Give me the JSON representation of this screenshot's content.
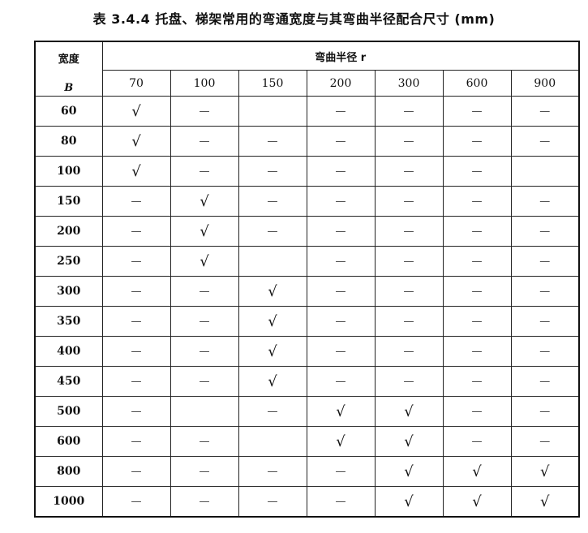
{
  "title": "表 3.4.4  托盘、梯架常用的弯通宽度与其弯曲半径配合尺寸 (mm)",
  "header": {
    "width_label": "宽度",
    "width_symbol": "B",
    "radius_label": "弯曲半径 r",
    "radii": [
      "70",
      "100",
      "150",
      "200",
      "300",
      "600",
      "900"
    ]
  },
  "rows": [
    {
      "B": "60",
      "cells": [
        "√",
        "—",
        "",
        "—",
        "—",
        "—",
        "—"
      ]
    },
    {
      "B": "80",
      "cells": [
        "√",
        "—",
        "—",
        "—",
        "—",
        "—",
        "—"
      ]
    },
    {
      "B": "100",
      "cells": [
        "√",
        "—",
        "—",
        "—",
        "—",
        "—",
        ""
      ]
    },
    {
      "B": "150",
      "cells": [
        "—",
        "√",
        "—",
        "—",
        "—",
        "—",
        "—"
      ]
    },
    {
      "B": "200",
      "cells": [
        "—",
        "√",
        "—",
        "—",
        "—",
        "—",
        "—"
      ]
    },
    {
      "B": "250",
      "cells": [
        "—",
        "√",
        "",
        "—",
        "—",
        "—",
        "—"
      ]
    },
    {
      "B": "300",
      "cells": [
        "—",
        "—",
        "√",
        "—",
        "—",
        "—",
        "—"
      ]
    },
    {
      "B": "350",
      "cells": [
        "—",
        "—",
        "√",
        "—",
        "—",
        "—",
        "—"
      ]
    },
    {
      "B": "400",
      "cells": [
        "—",
        "—",
        "√",
        "—",
        "—",
        "—",
        "—"
      ]
    },
    {
      "B": "450",
      "cells": [
        "—",
        "—",
        "√",
        "—",
        "—",
        "—",
        "—"
      ]
    },
    {
      "B": "500",
      "cells": [
        "—",
        "",
        "—",
        "√",
        "√",
        "—",
        "—"
      ]
    },
    {
      "B": "600",
      "cells": [
        "—",
        "—",
        "",
        "√",
        "√",
        "—",
        "—"
      ]
    },
    {
      "B": "800",
      "cells": [
        "—",
        "—",
        "—",
        "—",
        "√",
        "√",
        "√"
      ]
    },
    {
      "B": "1000",
      "cells": [
        "—",
        "—",
        "—",
        "—",
        "√",
        "√",
        "√"
      ]
    }
  ]
}
